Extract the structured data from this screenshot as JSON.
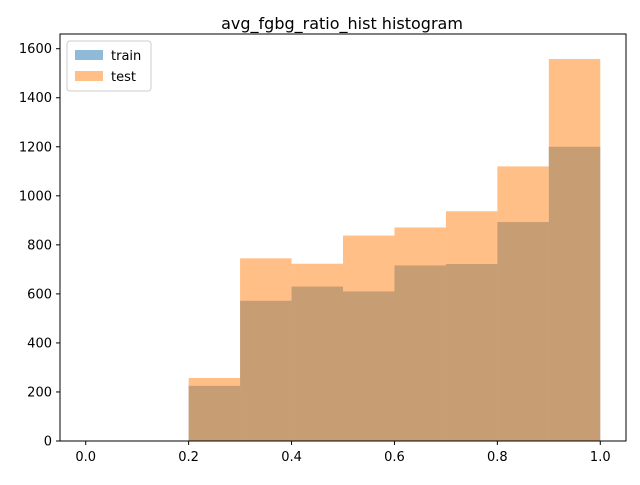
{
  "chart_data": {
    "type": "bar",
    "title": "avg_fgbg_ratio_hist histogram",
    "xlabel": "",
    "ylabel": "",
    "xlim": [
      -0.05,
      1.05
    ],
    "ylim": [
      0,
      1660
    ],
    "x_ticks": [
      0.0,
      0.2,
      0.4,
      0.6,
      0.8,
      1.0
    ],
    "x_tick_labels": [
      "0.0",
      "0.2",
      "0.4",
      "0.6",
      "0.8",
      "1.0"
    ],
    "y_ticks": [
      0,
      200,
      400,
      600,
      800,
      1000,
      1200,
      1400,
      1600
    ],
    "y_tick_labels": [
      "0",
      "200",
      "400",
      "600",
      "800",
      "1000",
      "1200",
      "1400",
      "1600"
    ],
    "bin_edges": [
      0.0,
      0.1,
      0.2,
      0.3,
      0.4,
      0.5,
      0.6,
      0.7,
      0.8,
      0.9,
      1.0
    ],
    "series": [
      {
        "name": "train",
        "color": "#1f77b4",
        "alpha": 0.5,
        "values": [
          0,
          0,
          225,
          572,
          630,
          610,
          716,
          722,
          893,
          1200
        ]
      },
      {
        "name": "test",
        "color": "#ff7f0e",
        "alpha": 0.5,
        "values": [
          0,
          0,
          257,
          745,
          723,
          838,
          871,
          937,
          1120,
          1558
        ]
      }
    ],
    "legend": {
      "placement": "top-left"
    },
    "grid": false
  }
}
